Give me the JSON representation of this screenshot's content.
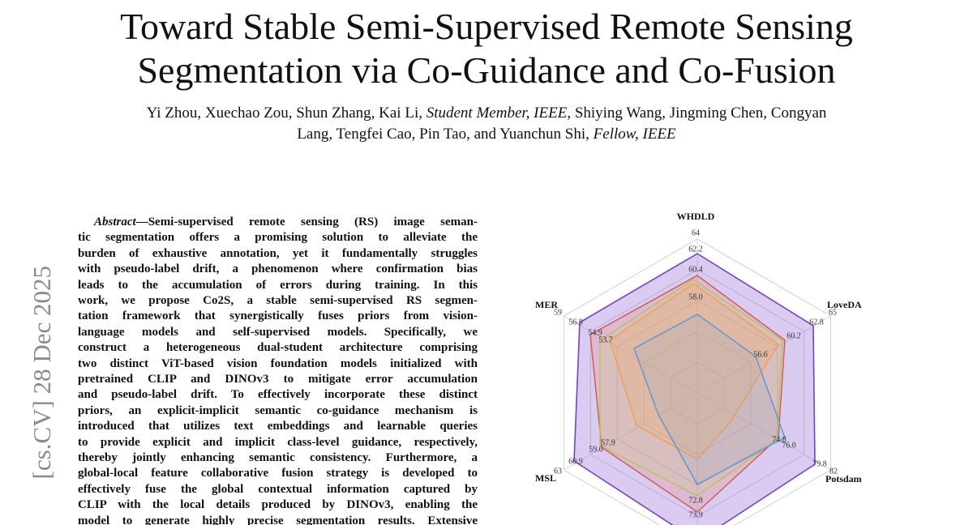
{
  "header": {
    "title": [
      "Toward Stable Semi-Supervised Remote Sensing",
      "Segmentation via Co-Guidance and Co-Fusion"
    ],
    "authors": [
      [
        {
          "text": "Yi Zhou, Xuechao Zou, Shun Zhang, Kai Li, ",
          "italic": false
        },
        {
          "text": "Student Member, IEEE",
          "italic": true
        },
        {
          "text": ", Shiying Wang, Jingming Chen, Congyan",
          "italic": false
        }
      ],
      [
        {
          "text": "Lang, Tengfei Cao, Pin Tao, and Yuanchun Shi, ",
          "italic": false
        },
        {
          "text": "Fellow, IEEE",
          "italic": true
        }
      ]
    ]
  },
  "sidebar": {
    "arxiv_stamp": "[cs.CV]   28 Dec 2025"
  },
  "abstract": {
    "label": "Abstract",
    "lines": [
      "—Semi-supervised remote sensing (RS) image seman-",
      "tic segmentation offers a promising solution to alleviate the",
      "burden of exhaustive annotation, yet it fundamentally struggles",
      "with pseudo-label drift, a phenomenon where confirmation bias",
      "leads to the accumulation of errors during training. In this",
      "work, we propose Co2S, a stable semi-supervised RS segmen-",
      "tation framework that synergistically fuses priors from vision-",
      "language models and self-supervised models. Specifically, we",
      "construct a heterogeneous dual-student architecture comprising",
      "two distinct ViT-based vision foundation models initialized with",
      "pretrained CLIP and DINOv3 to mitigate error accumulation",
      "and pseudo-label drift. To effectively incorporate these distinct",
      "priors, an explicit-implicit semantic co-guidance mechanism is",
      "introduced that utilizes text embeddings and learnable queries",
      "to provide explicit and implicit class-level guidance, respectively,",
      "thereby jointly enhancing semantic consistency. Furthermore, a",
      "global-local feature collaborative fusion strategy is developed to",
      "effectively fuse the global contextual information captured by",
      "CLIP with the local details produced by DINOv3, enabling the",
      "model to generate highly precise segmentation results. Extensive"
    ]
  },
  "figure": {
    "axes": [
      {
        "name": "WHDLD",
        "ticks": [
          "64",
          "62.2",
          "60.4",
          "58.0"
        ]
      },
      {
        "name": "LoveDA",
        "ticks": [
          "65",
          "62.8",
          "60.2",
          "56.6"
        ]
      },
      {
        "name": "Potsdam",
        "ticks": [
          "82",
          "79.8",
          "76.0",
          "74.8"
        ]
      },
      {
        "ticks": [
          "72.8",
          "73.9"
        ]
      },
      {
        "name": "MSL",
        "ticks": [
          "63",
          "60.9",
          "59.0",
          "57.9"
        ]
      },
      {
        "name": "MER",
        "ticks": [
          "59",
          "56.8",
          "54.9",
          "53.7"
        ]
      }
    ]
  }
}
